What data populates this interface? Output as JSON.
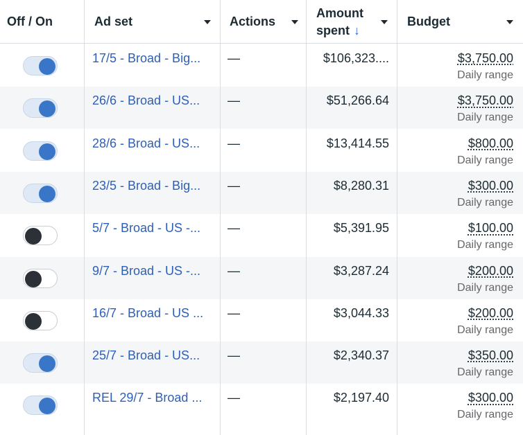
{
  "columns": {
    "toggle": "Off / On",
    "adset": "Ad set",
    "actions": "Actions",
    "amount_line1": "Amount",
    "amount_line2": "spent",
    "sort_arrow": "↓",
    "budget": "Budget"
  },
  "rows": [
    {
      "on": true,
      "adset": "17/5 - Broad - Big...",
      "actions": "—",
      "amount": "$106,323....",
      "budget": "$3,750.00",
      "range": "Daily range"
    },
    {
      "on": true,
      "adset": "26/6 - Broad - US...",
      "actions": "—",
      "amount": "$51,266.64",
      "budget": "$3,750.00",
      "range": "Daily range"
    },
    {
      "on": true,
      "adset": "28/6 - Broad - US...",
      "actions": "—",
      "amount": "$13,414.55",
      "budget": "$800.00",
      "range": "Daily range"
    },
    {
      "on": true,
      "adset": "23/5 - Broad - Big...",
      "actions": "—",
      "amount": "$8,280.31",
      "budget": "$300.00",
      "range": "Daily range"
    },
    {
      "on": false,
      "adset": "5/7 - Broad - US -...",
      "actions": "—",
      "amount": "$5,391.95",
      "budget": "$100.00",
      "range": "Daily range"
    },
    {
      "on": false,
      "adset": "9/7 - Broad - US -...",
      "actions": "—",
      "amount": "$3,287.24",
      "budget": "$200.00",
      "range": "Daily range"
    },
    {
      "on": false,
      "adset": "16/7 - Broad - US ...",
      "actions": "—",
      "amount": "$3,044.33",
      "budget": "$200.00",
      "range": "Daily range"
    },
    {
      "on": true,
      "adset": "25/7 - Broad - US...",
      "actions": "—",
      "amount": "$2,340.37",
      "budget": "$350.00",
      "range": "Daily range"
    },
    {
      "on": true,
      "adset": "REL 29/7 - Broad ...",
      "actions": "—",
      "amount": "$2,197.40",
      "budget": "$300.00",
      "range": "Daily range"
    }
  ],
  "colors": {
    "link": "#2e5fb8",
    "toggle_on": "#3a76c8",
    "toggle_off": "#2c3137",
    "row_alt": "#f5f6f7"
  }
}
